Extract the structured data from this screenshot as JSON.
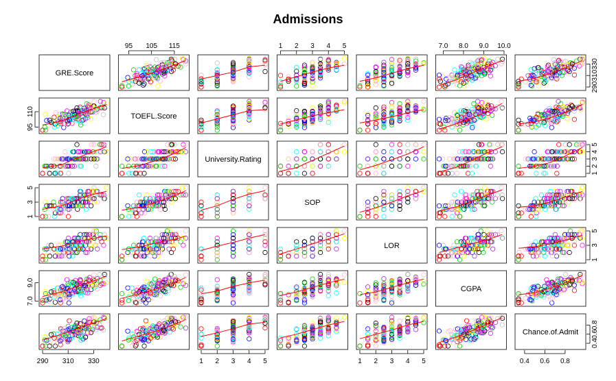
{
  "chart_data": {
    "type": "scatter",
    "subtype": "pairs",
    "title": "Admissions",
    "variables": [
      {
        "name": "GRE.Score",
        "range": [
          290,
          340
        ],
        "ticks": [
          290,
          310,
          330
        ],
        "tick_labels": [
          "290",
          "310",
          "330"
        ],
        "discrete": false
      },
      {
        "name": "TOEFL.Score",
        "range": [
          92,
          120
        ],
        "ticks": [
          95,
          105,
          115
        ],
        "tick_labels": [
          "95",
          "105",
          "115"
        ],
        "left_ticks": [
          95,
          110
        ],
        "left_tick_labels": [
          "95",
          "110"
        ],
        "discrete": false
      },
      {
        "name": "University.Rating",
        "range": [
          1,
          5
        ],
        "ticks": [
          1,
          2,
          3,
          4,
          5
        ],
        "tick_labels": [
          "1",
          "2",
          "3",
          "4",
          "5"
        ],
        "discrete": true,
        "step": 1
      },
      {
        "name": "SOP",
        "range": [
          1,
          5
        ],
        "ticks": [
          1,
          2,
          3,
          4,
          5
        ],
        "tick_labels": [
          "1",
          "2",
          "3",
          "4",
          "5"
        ],
        "left_ticks": [
          1,
          3,
          5
        ],
        "left_tick_labels": [
          "1",
          "3",
          "5"
        ],
        "discrete": true,
        "step": 0.5
      },
      {
        "name": "LOR",
        "range": [
          1,
          5
        ],
        "ticks": [
          1,
          2,
          3,
          4,
          5
        ],
        "tick_labels": [
          "1",
          "2",
          "3",
          "4",
          "5"
        ],
        "right_ticks": [
          1,
          3,
          5
        ],
        "right_tick_labels": [
          "1",
          "3",
          "5"
        ],
        "discrete": true,
        "step": 0.5
      },
      {
        "name": "CGPA",
        "range": [
          6.8,
          9.95
        ],
        "ticks": [
          7.0,
          8.0,
          9.0,
          10.0
        ],
        "tick_labels": [
          "7.0",
          "8.0",
          "9.0",
          "10.0"
        ],
        "left_ticks": [
          7.0,
          9.0
        ],
        "left_tick_labels": [
          "7.0",
          "9.0"
        ],
        "discrete": false
      },
      {
        "name": "Chance.of.Admit",
        "range": [
          0.34,
          0.97
        ],
        "ticks": [
          0.4,
          0.6,
          0.8
        ],
        "tick_labels": [
          "0.4",
          "0.6",
          "0.8"
        ],
        "right_ticks": [
          0.4,
          0.6,
          0.8
        ],
        "right_tick_labels": [
          "0.4",
          "0.6",
          "0.8"
        ],
        "discrete": false
      }
    ],
    "axes": {
      "top": {
        "3": "GRE.Score",
        "1": "TOEFL.Score",
        "5": "CGPA"
      },
      "bottom": {
        "0": "GRE.Score",
        "2": "University.Rating",
        "4": "LOR",
        "6": "Chance.of.Admit"
      },
      "left": {
        "1": "TOEFL.Score",
        "3": "SOP",
        "5": "CGPA"
      },
      "right": {
        "0": "GRE.Score",
        "2": "University.Rating",
        "4": "LOR",
        "6": "Chance.of.Admit"
      }
    },
    "point_colors": [
      "#000000",
      "#ff0000",
      "#00cd00",
      "#0000ff",
      "#00ffff",
      "#ff00ff",
      "#ffff00",
      "#bebebe",
      "#9932cc",
      "#ffb6c1"
    ],
    "smoother_color": "#ff0000",
    "smoothers_approx": {
      "GRE.Score~TOEFL.Score": [
        [
          92,
          299
        ],
        [
          100,
          308
        ],
        [
          108,
          318
        ],
        [
          116,
          330
        ],
        [
          120,
          336
        ]
      ],
      "GRE.Score~University.Rating": [
        [
          1,
          304
        ],
        [
          2,
          310
        ],
        [
          3,
          316
        ],
        [
          4,
          325
        ],
        [
          5,
          328
        ]
      ],
      "GRE.Score~SOP": [
        [
          1,
          300
        ],
        [
          2,
          308
        ],
        [
          3,
          316
        ],
        [
          4,
          323
        ],
        [
          5,
          328
        ]
      ],
      "GRE.Score~LOR": [
        [
          1,
          300
        ],
        [
          2,
          306
        ],
        [
          3,
          314
        ],
        [
          4,
          322
        ],
        [
          5,
          328
        ]
      ],
      "GRE.Score~CGPA": [
        [
          6.8,
          293
        ],
        [
          7.6,
          302
        ],
        [
          8.4,
          314
        ],
        [
          9.2,
          326
        ],
        [
          9.9,
          336
        ]
      ],
      "GRE.Score~Chance.of.Admit": [
        [
          0.34,
          300
        ],
        [
          0.5,
          305
        ],
        [
          0.65,
          313
        ],
        [
          0.8,
          323
        ],
        [
          0.97,
          336
        ]
      ],
      "TOEFL.Score~GRE.Score": [
        [
          290,
          97
        ],
        [
          305,
          101
        ],
        [
          315,
          106
        ],
        [
          325,
          111
        ],
        [
          340,
          117
        ]
      ],
      "TOEFL.Score~University.Rating": [
        [
          1,
          99
        ],
        [
          2,
          103
        ],
        [
          3,
          107
        ],
        [
          4,
          111
        ],
        [
          5,
          112
        ]
      ],
      "TOEFL.Score~SOP": [
        [
          1,
          98
        ],
        [
          2,
          102
        ],
        [
          3,
          106
        ],
        [
          4,
          109
        ],
        [
          5,
          112
        ]
      ],
      "TOEFL.Score~LOR": [
        [
          1,
          99
        ],
        [
          2,
          102
        ],
        [
          3,
          105
        ],
        [
          4,
          109
        ],
        [
          5,
          112
        ]
      ],
      "TOEFL.Score~CGPA": [
        [
          6.8,
          93
        ],
        [
          7.6,
          98
        ],
        [
          8.4,
          104
        ],
        [
          9.2,
          110
        ],
        [
          9.9,
          118
        ]
      ],
      "TOEFL.Score~Chance.of.Admit": [
        [
          0.34,
          98
        ],
        [
          0.5,
          100
        ],
        [
          0.65,
          104
        ],
        [
          0.8,
          109
        ],
        [
          0.97,
          117
        ]
      ],
      "University.Rating~GRE.Score": [
        [
          290,
          1.8
        ],
        [
          305,
          2.2
        ],
        [
          315,
          3.0
        ],
        [
          325,
          3.7
        ],
        [
          340,
          4.7
        ]
      ],
      "University.Rating~TOEFL.Score": [
        [
          92,
          1.7
        ],
        [
          100,
          2.1
        ],
        [
          108,
          2.9
        ],
        [
          116,
          3.9
        ],
        [
          120,
          4.6
        ]
      ],
      "University.Rating~SOP": [
        [
          1,
          1.3
        ],
        [
          2,
          1.8
        ],
        [
          3,
          2.8
        ],
        [
          4,
          3.8
        ],
        [
          5,
          4.8
        ]
      ],
      "University.Rating~LOR": [
        [
          1,
          1.5
        ],
        [
          2,
          2.1
        ],
        [
          3,
          2.9
        ],
        [
          4,
          3.7
        ],
        [
          5,
          4.7
        ]
      ],
      "University.Rating~CGPA": [
        [
          6.8,
          1.2
        ],
        [
          7.6,
          1.8
        ],
        [
          8.4,
          2.8
        ],
        [
          9.2,
          3.9
        ],
        [
          9.9,
          4.7
        ]
      ],
      "University.Rating~Chance.of.Admit": [
        [
          0.34,
          1.7
        ],
        [
          0.5,
          2.0
        ],
        [
          0.65,
          2.5
        ],
        [
          0.8,
          3.4
        ],
        [
          0.97,
          4.6
        ]
      ],
      "SOP~GRE.Score": [
        [
          290,
          2.0
        ],
        [
          305,
          2.5
        ],
        [
          315,
          3.2
        ],
        [
          325,
          3.9
        ],
        [
          340,
          4.5
        ]
      ],
      "SOP~TOEFL.Score": [
        [
          92,
          1.9
        ],
        [
          100,
          2.3
        ],
        [
          108,
          3.1
        ],
        [
          116,
          4.0
        ],
        [
          120,
          4.6
        ]
      ],
      "SOP~University.Rating": [
        [
          1,
          1.9
        ],
        [
          2,
          2.5
        ],
        [
          3,
          3.4
        ],
        [
          4,
          4.1
        ],
        [
          5,
          4.6
        ]
      ],
      "SOP~LOR": [
        [
          1,
          1.6
        ],
        [
          2,
          2.2
        ],
        [
          3,
          3.0
        ],
        [
          4,
          3.9
        ],
        [
          5,
          4.6
        ]
      ],
      "SOP~CGPA": [
        [
          6.8,
          1.8
        ],
        [
          7.6,
          2.3
        ],
        [
          8.4,
          3.1
        ],
        [
          9.2,
          4.0
        ],
        [
          9.9,
          4.7
        ]
      ],
      "SOP~Chance.of.Admit": [
        [
          0.34,
          2.3
        ],
        [
          0.5,
          2.5
        ],
        [
          0.65,
          3.0
        ],
        [
          0.8,
          3.7
        ],
        [
          0.97,
          4.5
        ]
      ],
      "LOR~GRE.Score": [
        [
          290,
          2.5
        ],
        [
          305,
          2.9
        ],
        [
          315,
          3.4
        ],
        [
          325,
          3.8
        ],
        [
          340,
          4.3
        ]
      ],
      "LOR~TOEFL.Score": [
        [
          92,
          2.4
        ],
        [
          100,
          2.8
        ],
        [
          108,
          3.4
        ],
        [
          116,
          3.9
        ],
        [
          120,
          4.3
        ]
      ],
      "LOR~University.Rating": [
        [
          1,
          2.3
        ],
        [
          2,
          2.9
        ],
        [
          3,
          3.4
        ],
        [
          4,
          4.0
        ],
        [
          5,
          4.5
        ]
      ],
      "LOR~SOP": [
        [
          1,
          1.8
        ],
        [
          2,
          2.5
        ],
        [
          3,
          3.2
        ],
        [
          4,
          3.9
        ],
        [
          5,
          4.6
        ]
      ],
      "LOR~CGPA": [
        [
          6.8,
          2.0
        ],
        [
          7.6,
          2.6
        ],
        [
          8.4,
          3.2
        ],
        [
          9.2,
          3.8
        ],
        [
          9.9,
          4.5
        ]
      ],
      "LOR~Chance.of.Admit": [
        [
          0.34,
          2.6
        ],
        [
          0.5,
          2.8
        ],
        [
          0.65,
          3.2
        ],
        [
          0.8,
          3.7
        ],
        [
          0.97,
          4.4
        ]
      ],
      "CGPA~GRE.Score": [
        [
          290,
          7.5
        ],
        [
          305,
          8.0
        ],
        [
          315,
          8.5
        ],
        [
          325,
          9.0
        ],
        [
          340,
          9.7
        ]
      ],
      "CGPA~TOEFL.Score": [
        [
          92,
          7.3
        ],
        [
          100,
          7.8
        ],
        [
          108,
          8.4
        ],
        [
          116,
          9.1
        ],
        [
          120,
          9.6
        ]
      ],
      "CGPA~University.Rating": [
        [
          1,
          7.8
        ],
        [
          2,
          8.1
        ],
        [
          3,
          8.6
        ],
        [
          4,
          9.0
        ],
        [
          5,
          9.3
        ]
      ],
      "CGPA~SOP": [
        [
          1,
          7.6
        ],
        [
          2,
          8.0
        ],
        [
          3,
          8.5
        ],
        [
          4,
          9.0
        ],
        [
          5,
          9.4
        ]
      ],
      "CGPA~LOR": [
        [
          1,
          7.7
        ],
        [
          2,
          8.0
        ],
        [
          3,
          8.5
        ],
        [
          4,
          9.0
        ],
        [
          5,
          9.4
        ]
      ],
      "CGPA~Chance.of.Admit": [
        [
          0.34,
          7.7
        ],
        [
          0.5,
          7.9
        ],
        [
          0.65,
          8.4
        ],
        [
          0.8,
          9.0
        ],
        [
          0.97,
          9.8
        ]
      ],
      "Chance.of.Admit~GRE.Score": [
        [
          290,
          0.47
        ],
        [
          305,
          0.6
        ],
        [
          315,
          0.7
        ],
        [
          325,
          0.8
        ],
        [
          340,
          0.94
        ]
      ],
      "Chance.of.Admit~TOEFL.Score": [
        [
          92,
          0.45
        ],
        [
          100,
          0.57
        ],
        [
          108,
          0.68
        ],
        [
          116,
          0.83
        ],
        [
          120,
          0.92
        ]
      ],
      "Chance.of.Admit~University.Rating": [
        [
          1,
          0.55
        ],
        [
          2,
          0.63
        ],
        [
          3,
          0.72
        ],
        [
          4,
          0.82
        ],
        [
          5,
          0.86
        ]
      ],
      "Chance.of.Admit~SOP": [
        [
          1,
          0.52
        ],
        [
          2,
          0.6
        ],
        [
          3,
          0.7
        ],
        [
          4,
          0.8
        ],
        [
          5,
          0.88
        ]
      ],
      "Chance.of.Admit~LOR": [
        [
          1,
          0.5
        ],
        [
          2,
          0.6
        ],
        [
          3,
          0.69
        ],
        [
          4,
          0.8
        ],
        [
          5,
          0.88
        ]
      ],
      "Chance.of.Admit~CGPA": [
        [
          6.8,
          0.42
        ],
        [
          7.6,
          0.53
        ],
        [
          8.4,
          0.67
        ],
        [
          9.2,
          0.83
        ],
        [
          9.9,
          0.96
        ]
      ]
    }
  }
}
